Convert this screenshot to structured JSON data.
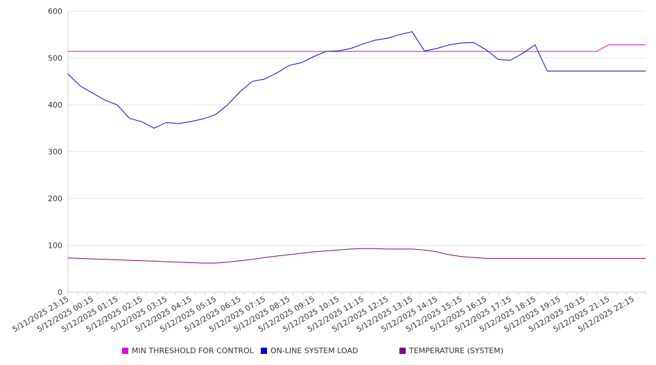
{
  "chart_data": {
    "type": "line",
    "ylim": [
      0,
      600
    ],
    "yticks": [
      0,
      100,
      200,
      300,
      400,
      500,
      600
    ],
    "x_tick_labels": [
      "5/11/2025 23:15",
      "5/12/2025 00:15",
      "5/12/2025 01:15",
      "5/12/2025 02:15",
      "5/12/2025 03:15",
      "5/12/2025 04:15",
      "5/12/2025 05:15",
      "5/12/2025 06:15",
      "5/12/2025 07:15",
      "5/12/2025 08:15",
      "5/12/2025 09:15",
      "5/12/2025 10:15",
      "5/12/2025 11:15",
      "5/12/2025 12:15",
      "5/12/2025 13:15",
      "5/12/2025 14:15",
      "5/12/2025 15:15",
      "5/12/2025 16:15",
      "5/12/2025 17:15",
      "5/12/2025 18:15",
      "5/12/2025 19:15",
      "5/12/2025 20:15",
      "5/12/2025 21:15",
      "5/12/2025 22:15"
    ],
    "x": [
      "5/11/2025 23:15",
      "5/11/2025 23:45",
      "5/12/2025 00:15",
      "5/12/2025 00:45",
      "5/12/2025 01:15",
      "5/12/2025 01:45",
      "5/12/2025 02:15",
      "5/12/2025 02:45",
      "5/12/2025 03:15",
      "5/12/2025 03:45",
      "5/12/2025 04:15",
      "5/12/2025 04:45",
      "5/12/2025 05:15",
      "5/12/2025 05:45",
      "5/12/2025 06:15",
      "5/12/2025 06:45",
      "5/12/2025 07:15",
      "5/12/2025 07:45",
      "5/12/2025 08:15",
      "5/12/2025 08:45",
      "5/12/2025 09:15",
      "5/12/2025 09:45",
      "5/12/2025 10:15",
      "5/12/2025 10:45",
      "5/12/2025 11:15",
      "5/12/2025 11:45",
      "5/12/2025 12:15",
      "5/12/2025 12:45",
      "5/12/2025 13:15",
      "5/12/2025 13:45",
      "5/12/2025 14:15",
      "5/12/2025 14:45",
      "5/12/2025 15:15",
      "5/12/2025 15:45",
      "5/12/2025 16:15",
      "5/12/2025 16:45",
      "5/12/2025 17:15",
      "5/12/2025 17:45",
      "5/12/2025 18:15",
      "5/12/2025 18:45",
      "5/12/2025 19:15",
      "5/12/2025 19:45",
      "5/12/2025 20:15",
      "5/12/2025 20:45",
      "5/12/2025 21:15",
      "5/12/2025 21:45",
      "5/12/2025 22:15",
      "5/12/2025 22:45"
    ],
    "series": [
      {
        "name": "MIN THRESHOLD FOR CONTROL",
        "color": "#e000e0",
        "values": [
          514,
          514,
          514,
          514,
          514,
          514,
          514,
          514,
          514,
          514,
          514,
          514,
          514,
          514,
          514,
          514,
          514,
          514,
          514,
          514,
          514,
          514,
          514,
          514,
          514,
          514,
          514,
          514,
          514,
          514,
          514,
          514,
          514,
          514,
          514,
          514,
          514,
          514,
          514,
          514,
          514,
          514,
          514,
          514,
          528,
          528,
          528,
          528
        ]
      },
      {
        "name": "ON-LINE SYSTEM LOAD",
        "color": "#0000cc",
        "values": [
          466,
          440,
          425,
          410,
          400,
          371,
          364,
          350,
          362,
          360,
          364,
          370,
          379,
          400,
          428,
          450,
          455,
          468,
          484,
          490,
          503,
          514,
          515,
          520,
          530,
          538,
          542,
          550,
          556,
          515,
          520,
          528,
          532,
          533,
          518,
          497,
          495,
          510,
          528,
          472,
          472,
          472,
          472,
          472,
          472,
          472,
          472,
          472
        ]
      },
      {
        "name": "TEMPERATURE (SYSTEM)",
        "color": "#800080",
        "values": [
          73,
          72,
          71,
          70,
          69,
          68,
          67,
          66,
          65,
          64,
          63,
          62,
          62,
          64,
          67,
          70,
          74,
          77,
          80,
          83,
          86,
          88,
          90,
          92,
          93,
          93,
          92,
          92,
          92,
          90,
          86,
          80,
          76,
          74,
          72,
          72,
          72,
          72,
          72,
          72,
          72,
          72,
          72,
          72,
          72,
          72,
          72,
          72
        ]
      }
    ],
    "legend_position": "bottom",
    "grid": true
  }
}
